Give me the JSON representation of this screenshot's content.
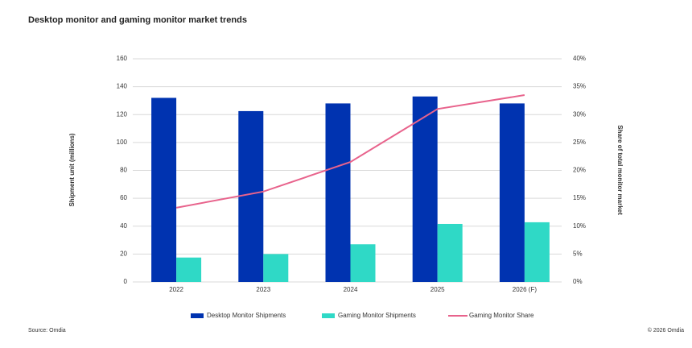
{
  "chart_data": {
    "type": "bar",
    "title": "Desktop monitor and gaming monitor market trends",
    "y_label": "Shipment unit (millions)",
    "y2_label": "Share of total monitor market",
    "categories": [
      "2022",
      "2023",
      "2024",
      "2025",
      "2026 (F)"
    ],
    "series": [
      {
        "name": "Desktop Monitor Shipments",
        "color": "#0033b0",
        "values": [
          132,
          122.5,
          128,
          133,
          128
        ]
      },
      {
        "name": "Gaming Monitor Shipments",
        "color": "#2fd9c6",
        "values": [
          17.5,
          20,
          27,
          41.6,
          42.8
        ]
      },
      {
        "name": "Gaming Monitor Share",
        "color": "#e8638c",
        "type": "line",
        "axis": "y2",
        "values": [
          13.3,
          16.2,
          21.5,
          31,
          33.5
        ]
      }
    ],
    "ylim": [
      0,
      160
    ],
    "yticks": [
      0,
      20,
      40,
      60,
      80,
      100,
      120,
      140,
      160
    ],
    "y2lim": [
      0,
      40
    ],
    "y2ticks": [
      {
        "value": 0,
        "label": "0%"
      },
      {
        "value": 5,
        "label": "5%"
      },
      {
        "value": 10,
        "label": "10%"
      },
      {
        "value": 15,
        "label": "15%"
      },
      {
        "value": 20,
        "label": "20%"
      },
      {
        "value": 25,
        "label": "25%"
      },
      {
        "value": 30,
        "label": "30%"
      },
      {
        "value": 35,
        "label": "35%"
      },
      {
        "value": 40,
        "label": "40%"
      }
    ],
    "grid": true,
    "legend": "bottom",
    "annotations": [
      "Source: Omdia",
      "© 2026 Omdia"
    ]
  }
}
